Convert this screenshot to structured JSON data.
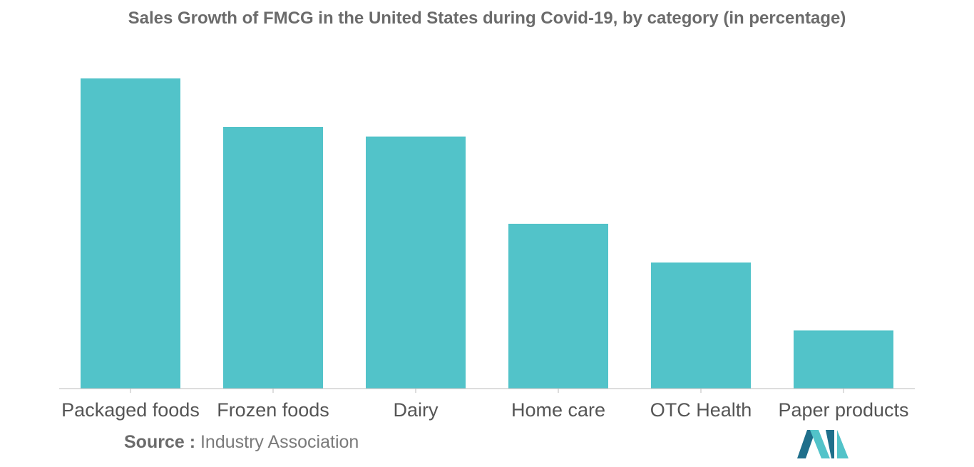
{
  "chart_data": {
    "type": "bar",
    "title": "Sales Growth of FMCG in the United States during Covid-19, by category (in percentage)",
    "categories": [
      "Packaged foods",
      "Frozen foods",
      "Dairy",
      "Home care",
      "OTC Health",
      "Paper products"
    ],
    "values": [
      32,
      27,
      26,
      17,
      13,
      6
    ],
    "xlabel": "",
    "ylabel": "",
    "ylim": [
      0,
      32
    ],
    "grid": false,
    "legend": "none",
    "bar_color": "#52c3c9",
    "axis_color": "#bbbbbb"
  },
  "source": {
    "label": "Source :",
    "text": "Industry Association"
  },
  "branding": {
    "logo_icon": "mordor-intelligence-logo-icon",
    "logo_colors": [
      "#1f6f8b",
      "#52c3c9"
    ]
  }
}
